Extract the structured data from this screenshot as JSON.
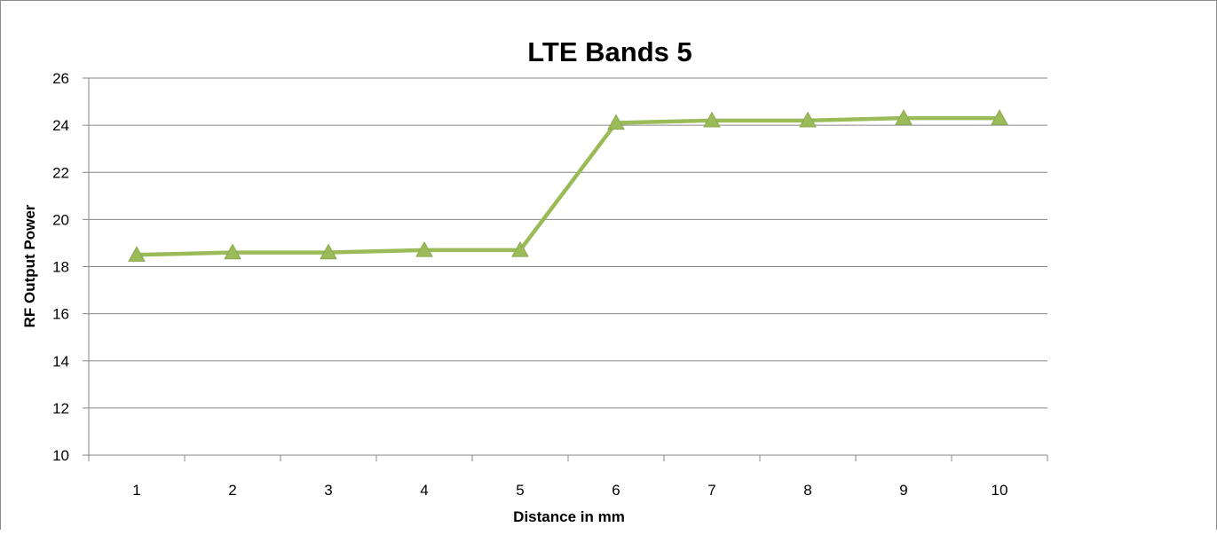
{
  "chart_data": {
    "type": "line",
    "title": "LTE Bands 5",
    "xlabel": "Distance in mm",
    "ylabel": "RF Output Power",
    "categories": [
      "1",
      "2",
      "3",
      "4",
      "5",
      "6",
      "7",
      "8",
      "9",
      "10"
    ],
    "series": [
      {
        "values": [
          18.5,
          18.6,
          18.6,
          18.7,
          18.7,
          24.1,
          24.2,
          24.2,
          24.3,
          24.3
        ],
        "color": "#9bbb59",
        "marker": "triangle"
      }
    ],
    "ylim": [
      10,
      26
    ],
    "yticks": [
      "10",
      "12",
      "14",
      "16",
      "18",
      "20",
      "22",
      "24",
      "26"
    ],
    "grid": true,
    "legend": "none"
  }
}
